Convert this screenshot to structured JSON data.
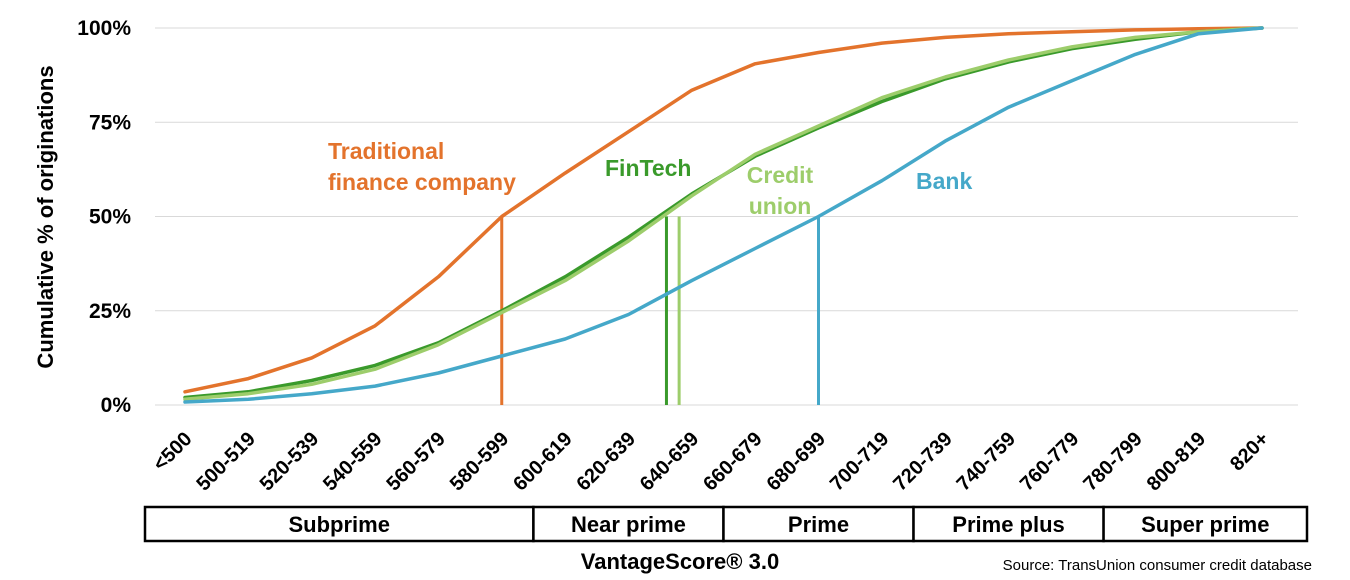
{
  "chart_data": {
    "type": "line",
    "title": "",
    "xlabel": "VantageScore® 3.0",
    "ylabel": "Cumulative % of originations",
    "ylim": [
      0,
      100
    ],
    "yticks": [
      "0%",
      "25%",
      "50%",
      "75%",
      "100%"
    ],
    "grid": true,
    "categories": [
      "<500",
      "500-519",
      "520-539",
      "540-559",
      "560-579",
      "580-599",
      "600-619",
      "620-639",
      "640-659",
      "660-679",
      "680-699",
      "700-719",
      "720-739",
      "740-759",
      "760-779",
      "780-799",
      "800-819",
      "820+"
    ],
    "series": [
      {
        "name": "Traditional finance company",
        "label_lines": [
          "Traditional",
          "finance company"
        ],
        "color": "#E3732C",
        "values": [
          3.5,
          7,
          12.5,
          21,
          34,
          50,
          61.5,
          72.5,
          83.5,
          90.5,
          93.5,
          96,
          97.5,
          98.5,
          99,
          99.5,
          99.8,
          100
        ],
        "median_x": 5.0
      },
      {
        "name": "FinTech",
        "label_lines": [
          "FinTech"
        ],
        "color": "#3A9A2B",
        "values": [
          2,
          3.5,
          6.5,
          10.5,
          16.5,
          25,
          34,
          44.5,
          56,
          66,
          73.5,
          80.5,
          86.5,
          91,
          94.5,
          97,
          99,
          100
        ],
        "median_x": 7.6
      },
      {
        "name": "Credit union",
        "label_lines": [
          "Credit",
          "union"
        ],
        "color": "#9DCD6B",
        "values": [
          1.5,
          3,
          5.5,
          9.5,
          16,
          24.5,
          33,
          43.5,
          55.5,
          66.5,
          74,
          81.5,
          87,
          91.5,
          95,
          97.5,
          99,
          100
        ],
        "median_x": 7.8
      },
      {
        "name": "Bank",
        "label_lines": [
          "Bank"
        ],
        "color": "#45A8C9",
        "values": [
          0.8,
          1.5,
          3,
          5,
          8.5,
          13,
          17.5,
          24,
          33,
          41.5,
          50,
          59.5,
          70,
          79,
          86,
          93,
          98.5,
          100
        ],
        "median_x": 10.0
      }
    ],
    "bands": [
      {
        "label": "Subprime",
        "from": 0,
        "to": 6
      },
      {
        "label": "Near prime",
        "from": 6,
        "to": 9
      },
      {
        "label": "Prime",
        "from": 9,
        "to": 12
      },
      {
        "label": "Prime plus",
        "from": 12,
        "to": 15
      },
      {
        "label": "Super prime",
        "from": 15,
        "to": 18
      }
    ],
    "source": "Source: TransUnion consumer credit database"
  }
}
